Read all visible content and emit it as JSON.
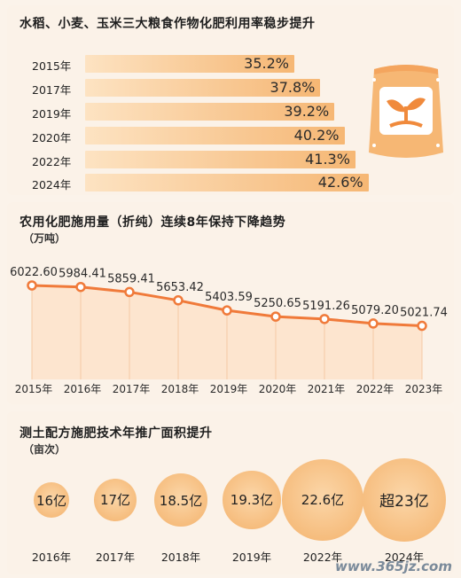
{
  "section1": {
    "title": "水稻、小麦、玉米三大粮食作物化肥利用率稳步提升",
    "bars": [
      {
        "year": "2015年",
        "value": 35.2,
        "label": "35.2%"
      },
      {
        "year": "2017年",
        "value": 37.8,
        "label": "37.8%"
      },
      {
        "year": "2019年",
        "value": 39.2,
        "label": "39.2%"
      },
      {
        "year": "2020年",
        "value": 40.2,
        "label": "40.2%"
      },
      {
        "year": "2022年",
        "value": 41.3,
        "label": "41.3%"
      },
      {
        "year": "2024年",
        "value": 42.6,
        "label": "42.6%"
      }
    ]
  },
  "section2": {
    "title": "农用化肥施用量（折纯）连续8年保持下降趋势",
    "unit": "（万吨）"
  },
  "section3": {
    "title": "测土配方施肥技术年推广面积提升",
    "unit": "（亩次）",
    "bubbles": [
      {
        "year": "2016年",
        "label": "16亿",
        "value": 16
      },
      {
        "year": "2017年",
        "label": "17亿",
        "value": 17
      },
      {
        "year": "2018年",
        "label": "18.5亿",
        "value": 18.5
      },
      {
        "year": "2019年",
        "label": "19.3亿",
        "value": 19.3
      },
      {
        "year": "2022年",
        "label": "22.6亿",
        "value": 22.6
      },
      {
        "year": "2024年",
        "label": "超23亿",
        "value": 23
      }
    ]
  },
  "chart_data": [
    {
      "type": "bar",
      "title": "水稻、小麦、玉米三大粮食作物化肥利用率稳步提升",
      "categories": [
        "2015年",
        "2017年",
        "2019年",
        "2020年",
        "2022年",
        "2024年"
      ],
      "values": [
        35.2,
        37.8,
        39.2,
        40.2,
        41.3,
        42.6
      ]
    },
    {
      "type": "line",
      "title": "农用化肥施用量（折纯）连续8年保持下降趋势",
      "ylabel": "（万吨）",
      "categories": [
        "2015年",
        "2016年",
        "2017年",
        "2018年",
        "2019年",
        "2020年",
        "2021年",
        "2022年",
        "2023年"
      ],
      "values": [
        6022.6,
        5984.41,
        5859.41,
        5653.42,
        5403.59,
        5250.65,
        5191.26,
        5079.2,
        5021.74
      ],
      "value_labels": [
        "6022.60",
        "5984.41",
        "5859.41",
        "5653.42",
        "5403.59",
        "5250.65",
        "5191.26",
        "5079.20",
        "5021.74"
      ],
      "line_color": "#f07a3a"
    },
    {
      "type": "scatter",
      "title": "测土配方施肥技术年推广面积提升",
      "ylabel": "（亩次）",
      "categories": [
        "2016年",
        "2017年",
        "2018年",
        "2019年",
        "2022年",
        "2024年"
      ],
      "values": [
        16,
        17,
        18.5,
        19.3,
        22.6,
        23
      ]
    }
  ],
  "icon": "fertilizer-bag-icon",
  "watermark": "www.365jz.com"
}
